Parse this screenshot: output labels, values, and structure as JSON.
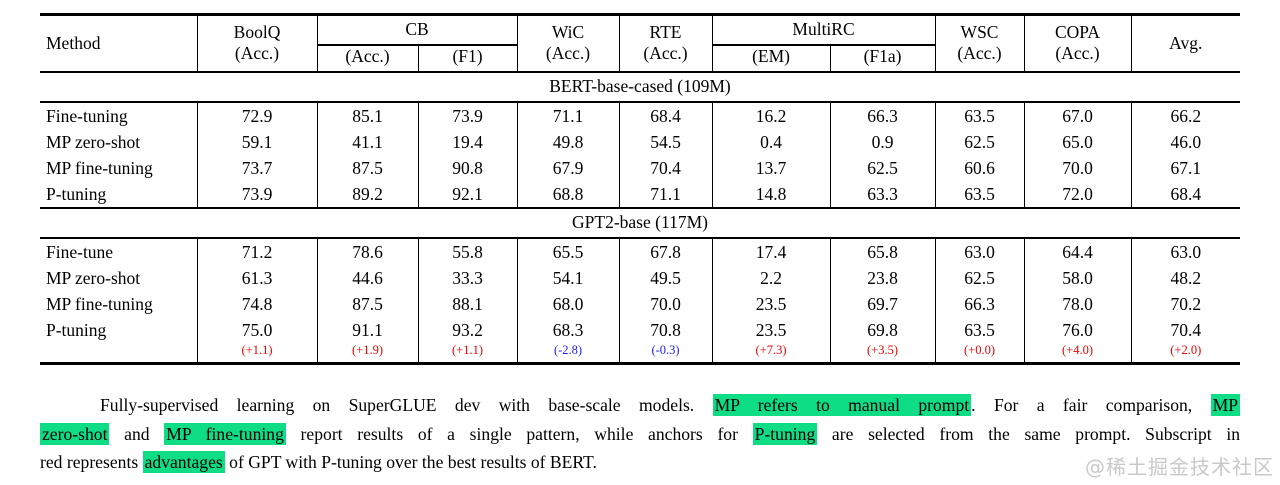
{
  "table": {
    "header": {
      "method": "Method",
      "boolq": {
        "label": "BoolQ",
        "sub": "(Acc.)"
      },
      "cb": {
        "label": "CB",
        "sub1": "(Acc.)",
        "sub2": "(F1)"
      },
      "wic": {
        "label": "WiC",
        "sub": "(Acc.)"
      },
      "rte": {
        "label": "RTE",
        "sub": "(Acc.)"
      },
      "multirc": {
        "label": "MultiRC",
        "sub1": "(EM)",
        "sub2": "(F1a)"
      },
      "wsc": {
        "label": "WSC",
        "sub": "(Acc.)"
      },
      "copa": {
        "label": "COPA",
        "sub": "(Acc.)"
      },
      "avg": "Avg."
    },
    "sections": [
      {
        "title": "BERT-base-cased (109M)",
        "rows": [
          {
            "method": "Fine-tuning",
            "values": [
              "72.9",
              "85.1",
              "73.9",
              "71.1",
              "68.4",
              "16.2",
              "66.3",
              "63.5",
              "67.0",
              "66.2"
            ]
          },
          {
            "method": "MP zero-shot",
            "values": [
              "59.1",
              "41.1",
              "19.4",
              "49.8",
              "54.5",
              "0.4",
              "0.9",
              "62.5",
              "65.0",
              "46.0"
            ]
          },
          {
            "method": "MP fine-tuning",
            "values": [
              "73.7",
              "87.5",
              "90.8",
              "67.9",
              "70.4",
              "13.7",
              "62.5",
              "60.6",
              "70.0",
              "67.1"
            ]
          },
          {
            "method": "P-tuning",
            "values": [
              "73.9",
              "89.2",
              "92.1",
              "68.8",
              "71.1",
              "14.8",
              "63.3",
              "63.5",
              "72.0",
              "68.4"
            ]
          }
        ]
      },
      {
        "title": "GPT2-base (117M)",
        "rows": [
          {
            "method": "Fine-tune",
            "values": [
              "71.2",
              "78.6",
              "55.8",
              "65.5",
              "67.8",
              "17.4",
              "65.8",
              "63.0",
              "64.4",
              "63.0"
            ]
          },
          {
            "method": "MP zero-shot",
            "values": [
              "61.3",
              "44.6",
              "33.3",
              "54.1",
              "49.5",
              "2.2",
              "23.8",
              "62.5",
              "58.0",
              "48.2"
            ]
          },
          {
            "method": "MP fine-tuning",
            "values": [
              "74.8",
              "87.5",
              "88.1",
              "68.0",
              "70.0",
              "23.5",
              "69.7",
              "66.3",
              "78.0",
              "70.2"
            ]
          },
          {
            "method": "P-tuning",
            "values": [
              "75.0",
              "91.1",
              "93.2",
              "68.3",
              "70.8",
              "23.5",
              "69.8",
              "63.5",
              "76.0",
              "70.4"
            ]
          }
        ],
        "deltas": [
          "(+1.1)",
          "(+1.9)",
          "(+1.1)",
          "(-2.8)",
          "(-0.3)",
          "(+7.3)",
          "(+3.5)",
          "(+0.0)",
          "(+4.0)",
          "(+2.0)"
        ]
      }
    ]
  },
  "caption": {
    "lines": [
      {
        "indent": true,
        "justify": true,
        "runs": [
          {
            "t": "Fully-supervised learning on SuperGLUE dev with base-scale models. ",
            "h": false
          },
          {
            "t": "MP refers to manual prompt",
            "h": true
          },
          {
            "t": ". For a fair comparison, ",
            "h": false
          },
          {
            "t": "MP",
            "h": true
          }
        ]
      },
      {
        "indent": false,
        "justify": true,
        "runs": [
          {
            "t": "zero-shot",
            "h": true
          },
          {
            "t": " and ",
            "h": false
          },
          {
            "t": "MP fine-tuning",
            "h": true
          },
          {
            "t": " report results of a single pattern, while anchors for ",
            "h": false
          },
          {
            "t": "P-tuning",
            "h": true
          },
          {
            "t": " are selected from the same prompt. Subscript in",
            "h": false
          }
        ]
      },
      {
        "indent": false,
        "justify": false,
        "runs": [
          {
            "t": "red represents ",
            "h": false
          },
          {
            "t": "advantages",
            "h": true
          },
          {
            "t": " of GPT with P-tuning over the best results of BERT.",
            "h": false
          }
        ]
      }
    ]
  },
  "watermark": "@稀土掘金技术社区",
  "colors": {
    "highlight": "#0fdd86",
    "delta_positive": "#ee0000",
    "delta_negative": "#2222ee",
    "watermark": "#c9c9c9"
  }
}
